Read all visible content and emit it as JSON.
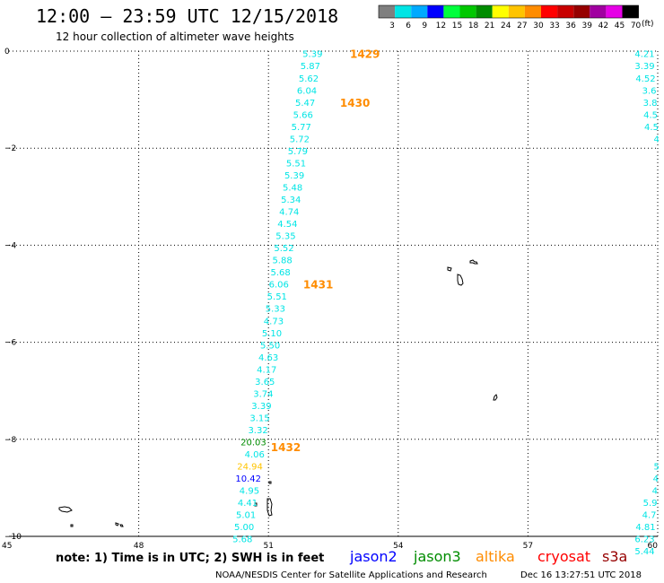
{
  "header": {
    "title": "12:00 – 23:59 UTC 12/15/2018",
    "subtitle": "12 hour collection of altimeter wave heights"
  },
  "legend": {
    "unit": "(ft)",
    "bins": [
      {
        "label": "3",
        "color": "#7f7f7f"
      },
      {
        "label": "6",
        "color": "#00e5e5"
      },
      {
        "label": "9",
        "color": "#00aaff"
      },
      {
        "label": "12",
        "color": "#0000ff"
      },
      {
        "label": "15",
        "color": "#00ff3c"
      },
      {
        "label": "18",
        "color": "#00c800"
      },
      {
        "label": "21",
        "color": "#008c00"
      },
      {
        "label": "24",
        "color": "#ffff00"
      },
      {
        "label": "27",
        "color": "#ffc400"
      },
      {
        "label": "30",
        "color": "#ff8c00"
      },
      {
        "label": "33",
        "color": "#ff0000"
      },
      {
        "label": "36",
        "color": "#c80000"
      },
      {
        "label": "39",
        "color": "#960000"
      },
      {
        "label": "42",
        "color": "#a000a0"
      },
      {
        "label": "45",
        "color": "#e600e6"
      },
      {
        "label": "70",
        "color": "#000000"
      }
    ]
  },
  "axes": {
    "x_ticks": [
      "45",
      "48",
      "51",
      "54",
      "57",
      "60"
    ],
    "y_ticks": [
      "0",
      "−2",
      "−4",
      "−6",
      "−8",
      "−10"
    ],
    "lon_min": 45,
    "lon_max": 60,
    "lat_min": -10,
    "lat_max": 0
  },
  "track_west": {
    "color": "#00e5e5",
    "points": [
      {
        "lon": 52.25,
        "lat": -0.05,
        "label": "5.39"
      },
      {
        "lon": 52.2,
        "lat": -0.3,
        "label": "5.87"
      },
      {
        "lon": 52.16,
        "lat": -0.55,
        "label": "5.62"
      },
      {
        "lon": 52.12,
        "lat": -0.8,
        "label": "6.04"
      },
      {
        "lon": 52.08,
        "lat": -1.05,
        "label": "5.47"
      },
      {
        "lon": 52.03,
        "lat": -1.3,
        "label": "5.66"
      },
      {
        "lon": 51.99,
        "lat": -1.55,
        "label": "5.77"
      },
      {
        "lon": 51.95,
        "lat": -1.8,
        "label": "5.72"
      },
      {
        "lon": 51.91,
        "lat": -2.05,
        "label": "5.79"
      },
      {
        "lon": 51.87,
        "lat": -2.3,
        "label": "5.51"
      },
      {
        "lon": 51.83,
        "lat": -2.55,
        "label": "5.39"
      },
      {
        "lon": 51.79,
        "lat": -2.8,
        "label": "5.48"
      },
      {
        "lon": 51.75,
        "lat": -3.05,
        "label": "5.34"
      },
      {
        "lon": 51.71,
        "lat": -3.3,
        "label": "4.74"
      },
      {
        "lon": 51.67,
        "lat": -3.55,
        "label": "4.54"
      },
      {
        "lon": 51.63,
        "lat": -3.8,
        "label": "5.35"
      },
      {
        "lon": 51.59,
        "lat": -4.05,
        "label": "5.52"
      },
      {
        "lon": 51.55,
        "lat": -4.3,
        "label": "5.88"
      },
      {
        "lon": 51.51,
        "lat": -4.55,
        "label": "5.68"
      },
      {
        "lon": 51.47,
        "lat": -4.8,
        "label": "6.06"
      },
      {
        "lon": 51.43,
        "lat": -5.05,
        "label": "5.51"
      },
      {
        "lon": 51.39,
        "lat": -5.3,
        "label": "5.33"
      },
      {
        "lon": 51.35,
        "lat": -5.55,
        "label": "4.73"
      },
      {
        "lon": 51.31,
        "lat": -5.8,
        "label": "5.10"
      },
      {
        "lon": 51.27,
        "lat": -6.05,
        "label": "5.50"
      },
      {
        "lon": 51.23,
        "lat": -6.3,
        "label": "4.63"
      },
      {
        "lon": 51.19,
        "lat": -6.55,
        "label": "4.17"
      },
      {
        "lon": 51.15,
        "lat": -6.8,
        "label": "3.65"
      },
      {
        "lon": 51.11,
        "lat": -7.05,
        "label": "3.74"
      },
      {
        "lon": 51.07,
        "lat": -7.3,
        "label": "3.39"
      },
      {
        "lon": 51.03,
        "lat": -7.55,
        "label": "3.15"
      },
      {
        "lon": 50.99,
        "lat": -7.8,
        "label": "3.32"
      },
      {
        "lon": 50.95,
        "lat": -8.05,
        "label": "20.03",
        "color": "#008c00"
      },
      {
        "lon": 50.91,
        "lat": -8.3,
        "label": "4.06"
      },
      {
        "lon": 50.87,
        "lat": -8.55,
        "label": "24.94",
        "color": "#ffc400"
      },
      {
        "lon": 50.83,
        "lat": -8.8,
        "label": "10.42",
        "color": "#0000ff"
      },
      {
        "lon": 50.79,
        "lat": -9.05,
        "label": "4.95"
      },
      {
        "lon": 50.75,
        "lat": -9.3,
        "label": "4.41"
      },
      {
        "lon": 50.71,
        "lat": -9.55,
        "label": "5.01"
      },
      {
        "lon": 50.67,
        "lat": -9.8,
        "label": "5.00"
      },
      {
        "lon": 50.63,
        "lat": -10.05,
        "label": "5.68"
      }
    ],
    "times": [
      {
        "lon": 53.23,
        "lat": -0.05,
        "label": "1429"
      },
      {
        "lon": 53.0,
        "lat": -1.05,
        "label": "1430"
      },
      {
        "lon": 52.15,
        "lat": -4.8,
        "label": "1431"
      },
      {
        "lon": 51.4,
        "lat": -8.15,
        "label": "1432"
      }
    ]
  },
  "track_east_top": {
    "color": "#00e5e5",
    "points": [
      {
        "lon": 59.93,
        "lat": -0.05,
        "label": "4.21"
      },
      {
        "lon": 59.93,
        "lat": -0.3,
        "label": "3.39"
      },
      {
        "lon": 59.95,
        "lat": -0.55,
        "label": "4.52"
      },
      {
        "lon": 59.97,
        "lat": -0.8,
        "label": "3.6"
      },
      {
        "lon": 59.99,
        "lat": -1.05,
        "label": "3.8"
      },
      {
        "lon": 60.0,
        "lat": -1.3,
        "label": "4.5"
      },
      {
        "lon": 60.02,
        "lat": -1.55,
        "label": "4.5"
      },
      {
        "lon": 60.04,
        "lat": -1.8,
        "label": "4"
      }
    ]
  },
  "track_east_bottom": {
    "color": "#00e5e5",
    "points": [
      {
        "lon": 60.04,
        "lat": -8.55,
        "label": "5"
      },
      {
        "lon": 60.02,
        "lat": -8.8,
        "label": "4"
      },
      {
        "lon": 60.0,
        "lat": -9.05,
        "label": "4"
      },
      {
        "lon": 59.99,
        "lat": -9.3,
        "label": "5.9"
      },
      {
        "lon": 59.97,
        "lat": -9.55,
        "label": "4.7"
      },
      {
        "lon": 59.95,
        "lat": -9.8,
        "label": "4.81"
      },
      {
        "lon": 59.93,
        "lat": -10.05,
        "label": "6.23"
      },
      {
        "lon": 59.93,
        "lat": -10.3,
        "label": "5.44"
      }
    ]
  },
  "footer": {
    "note": "note: 1) Time is in UTC; 2) SWH is in feet",
    "satellites": [
      {
        "label": "jason2",
        "color": "#0000ff"
      },
      {
        "label": "jason3",
        "color": "#008c00"
      },
      {
        "label": "altika",
        "color": "#ff8c00"
      },
      {
        "label": "cryosat",
        "color": "#ff0000"
      },
      {
        "label": "s3a",
        "color": "#960000"
      }
    ],
    "credit": "NOAA/NESDIS Center for Satellite Applications and Research",
    "timestamp": "Dec 16 13:27:51 UTC 2018"
  }
}
